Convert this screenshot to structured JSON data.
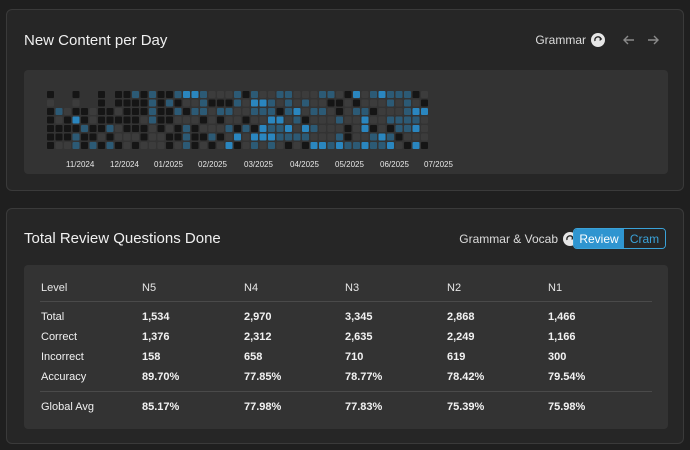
{
  "content_card": {
    "title": "New Content per Day",
    "filter_label": "Grammar",
    "months": [
      "11/2024",
      "12/2024",
      "01/2025",
      "02/2025",
      "03/2025",
      "04/2025",
      "05/2025",
      "06/2025",
      "07/2025"
    ],
    "colors": {
      "empty": "#151515",
      "low": "#3c3c3c",
      "mid": "#2c5a75",
      "high": "#2a86bf"
    }
  },
  "review_card": {
    "title": "Total Review Questions Done",
    "filter_label": "Grammar & Vocab",
    "toggle": {
      "review": "Review",
      "cram": "Cram"
    },
    "columns": [
      "Level",
      "N5",
      "N4",
      "N3",
      "N2",
      "N1"
    ],
    "rows": [
      {
        "label": "Total",
        "values": [
          "1,534",
          "2,970",
          "3,345",
          "2,868",
          "1,466"
        ]
      },
      {
        "label": "Correct",
        "values": [
          "1,376",
          "2,312",
          "2,635",
          "2,249",
          "1,166"
        ]
      },
      {
        "label": "Incorrect",
        "values": [
          "158",
          "658",
          "710",
          "619",
          "300"
        ]
      },
      {
        "label": "Accuracy",
        "values": [
          "89.70%",
          "77.85%",
          "78.77%",
          "78.42%",
          "79.54%"
        ]
      }
    ],
    "global": {
      "label": "Global Avg",
      "values": [
        "85.17%",
        "77.98%",
        "77.83%",
        "75.39%",
        "75.98%"
      ]
    },
    "accent": "#2f95d0"
  }
}
